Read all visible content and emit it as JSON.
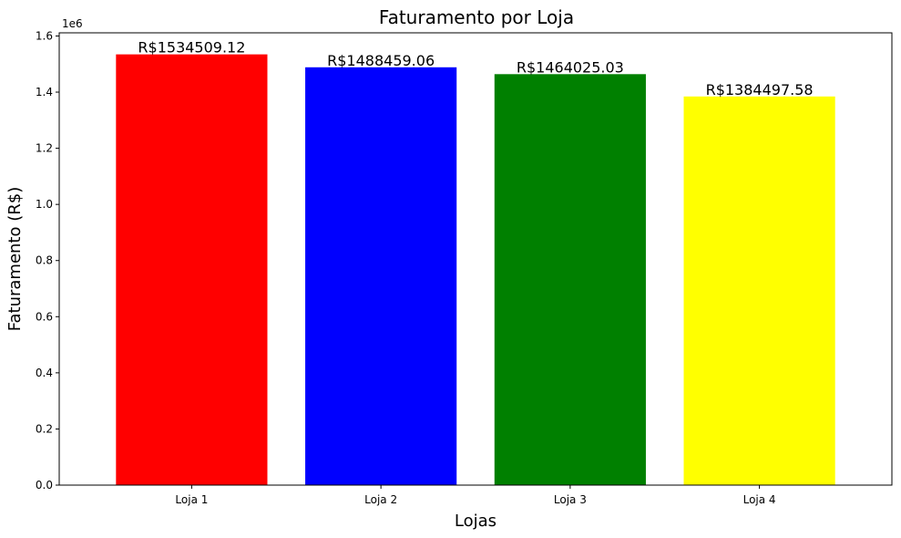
{
  "chart_data": {
    "type": "bar",
    "title": "Faturamento por Loja",
    "xlabel": "Lojas",
    "ylabel": "Faturamento (R$)",
    "scale_label": "1e6",
    "categories": [
      "Loja 1",
      "Loja 2",
      "Loja 3",
      "Loja 4"
    ],
    "values": [
      1534509.12,
      1488459.06,
      1464025.03,
      1384497.58
    ],
    "data_labels": [
      "R$1534509.12",
      "R$1488459.06",
      "R$1464025.03",
      "R$1384497.58"
    ],
    "colors": [
      "#ff0000",
      "#0000ff",
      "#008000",
      "#ffff00"
    ],
    "ylim": [
      0,
      1611234.58
    ],
    "yticks": [
      0,
      200000,
      400000,
      600000,
      800000,
      1000000,
      1200000,
      1400000,
      1600000
    ],
    "ytick_labels": [
      "0.0",
      "0.2",
      "0.4",
      "0.6",
      "0.8",
      "1.0",
      "1.2",
      "1.4",
      "1.6"
    ],
    "grid": false,
    "legend": "none"
  }
}
